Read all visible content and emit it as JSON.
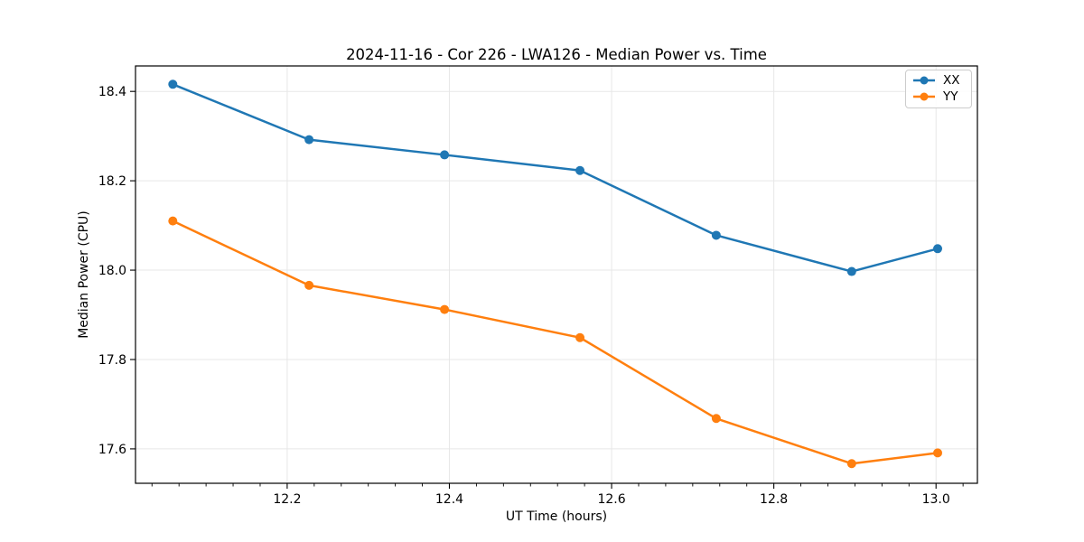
{
  "figure": {
    "background": "#ffffff"
  },
  "chart_data": {
    "type": "line",
    "title": "2024-11-16 - Cor 226 - LWA126 - Median Power vs. Time",
    "xlabel": "UT Time (hours)",
    "ylabel": "Median Power (CPU)",
    "x": [
      12.059,
      12.227,
      12.394,
      12.561,
      12.729,
      12.896,
      13.002
    ],
    "series": [
      {
        "name": "XX",
        "color": "#1f77b4",
        "values": [
          18.416,
          18.292,
          18.258,
          18.223,
          18.078,
          17.997,
          18.048
        ]
      },
      {
        "name": "YY",
        "color": "#ff7f0e",
        "values": [
          18.11,
          17.966,
          17.912,
          17.849,
          17.668,
          17.567,
          17.591
        ]
      }
    ],
    "xlim": [
      12.013,
      13.051
    ],
    "ylim": [
      17.523,
      18.457
    ],
    "x_ticks": [
      12.2,
      12.4,
      12.6,
      12.8,
      13.0
    ],
    "y_ticks": [
      17.6,
      17.8,
      18.0,
      18.2,
      18.4
    ],
    "x_tick_labels": [
      "12.2",
      "12.4",
      "12.6",
      "12.8",
      "13.0"
    ],
    "y_tick_labels": [
      "17.6",
      "17.8",
      "18.0",
      "18.2",
      "18.4"
    ],
    "x_minor_divisions": 6,
    "grid": true,
    "grid_color": "#e7e7e7",
    "spine_color": "#000000",
    "legend_position": "upper right",
    "legend": [
      "XX",
      "YY"
    ]
  }
}
